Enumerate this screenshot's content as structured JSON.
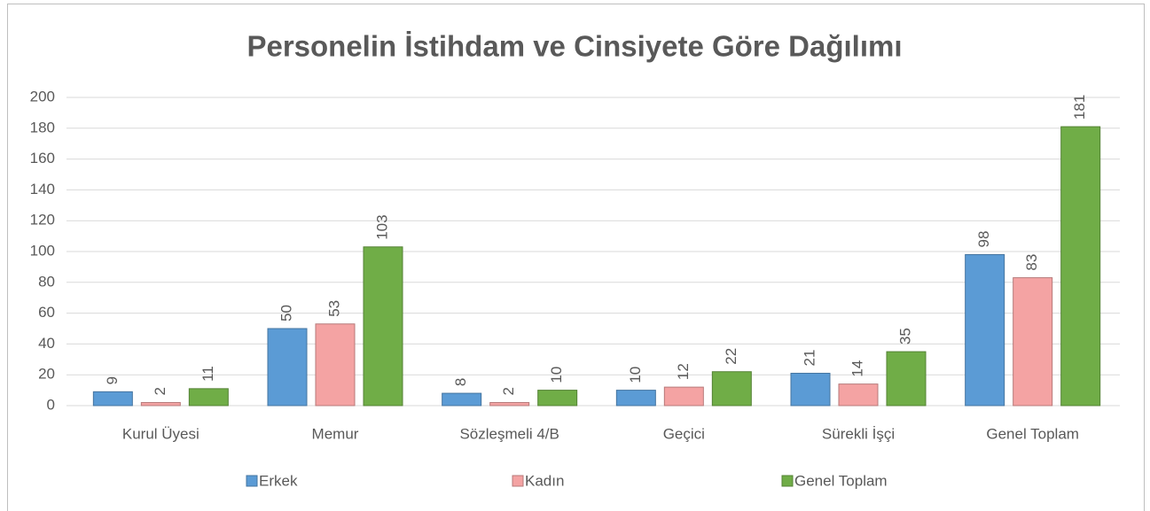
{
  "chart_data": {
    "type": "bar",
    "title": "Personelin İstihdam ve Cinsiyete Göre Dağılımı",
    "categories": [
      "Kurul Üyesi",
      "Memur",
      "Sözleşmeli 4/B",
      "Geçici",
      "Sürekli İşçi",
      "Genel Toplam"
    ],
    "series": [
      {
        "name": "Erkek",
        "color": "#5b9bd5",
        "values": [
          9,
          50,
          8,
          10,
          21,
          98
        ]
      },
      {
        "name": "Kadın",
        "color": "#f4a3a3",
        "values": [
          2,
          53,
          2,
          12,
          14,
          83
        ]
      },
      {
        "name": "Genel Toplam",
        "color": "#70ad47",
        "values": [
          11,
          103,
          10,
          22,
          35,
          181
        ]
      }
    ],
    "ylim": [
      0,
      200
    ],
    "yticks": [
      0,
      20,
      40,
      60,
      80,
      100,
      120,
      140,
      160,
      180,
      200
    ],
    "grid": true,
    "legend": "bottom"
  }
}
